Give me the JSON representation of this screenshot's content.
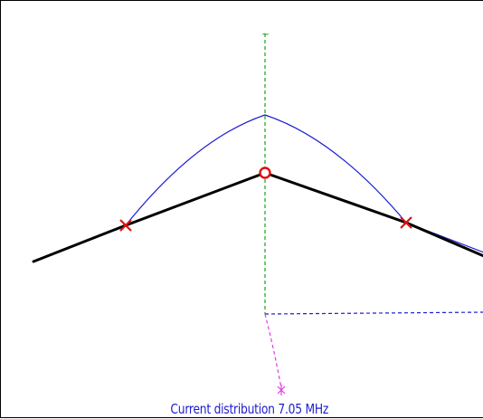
{
  "caption": "Current distribution  7.05 MHz",
  "axis_marker": "~",
  "colors": {
    "wire": "#000000",
    "current_curve": "#1c1cd0",
    "vertical_axis": "#17a317",
    "horizontal_axis": "#1c1cd0",
    "ground_axis": "#e040e0",
    "loads": "#e01010",
    "source": "#e01010",
    "caption": "#1c1cd0"
  },
  "icons": {
    "load": "cross-marker",
    "source": "circle-marker",
    "ground": "star-marker"
  }
}
